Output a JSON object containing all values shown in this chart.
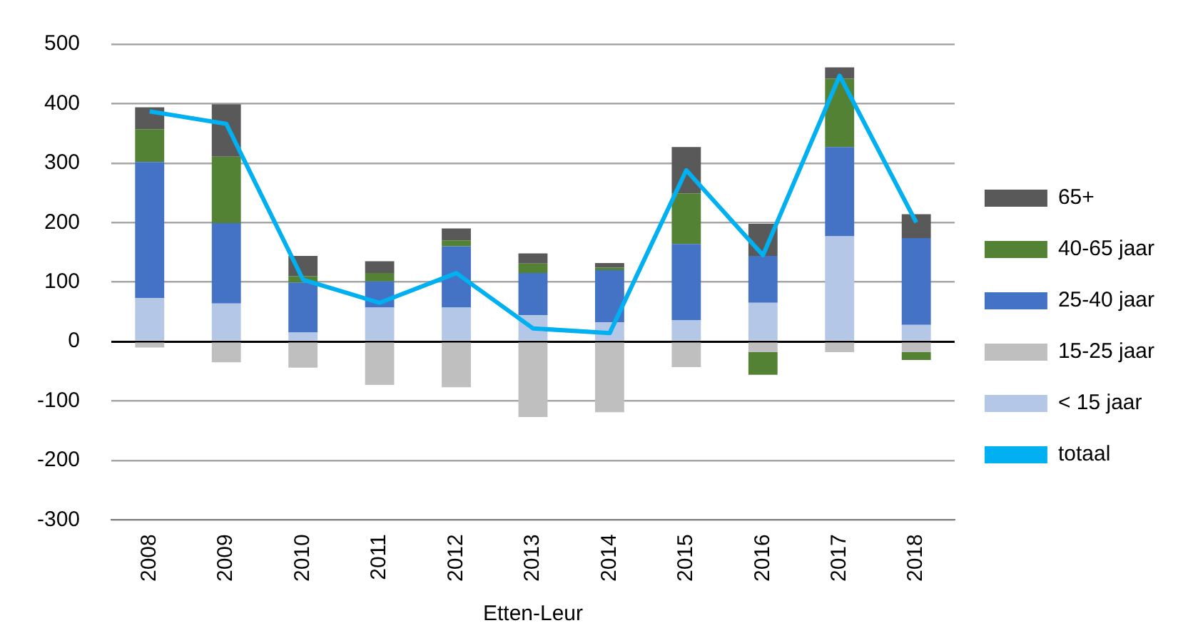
{
  "chart_data": {
    "type": "bar",
    "stacked": true,
    "xlabel": "Etten-Leur",
    "categories": [
      "2008",
      "2009",
      "2010",
      "2011",
      "2012",
      "2013",
      "2014",
      "2015",
      "2016",
      "2017",
      "2018"
    ],
    "series": [
      {
        "name": "< 15 jaar",
        "color": "#b4c7e7",
        "values": [
          73,
          64,
          15,
          57,
          57,
          44,
          32,
          36,
          65,
          177,
          28
        ]
      },
      {
        "name": "15-25 jaar",
        "color": "#bfbfbf",
        "values": [
          -10,
          -35,
          -44,
          -73,
          -77,
          -127,
          -119,
          -43,
          -18,
          -18,
          -18
        ]
      },
      {
        "name": "25-40 jaar",
        "color": "#4472c4",
        "values": [
          229,
          135,
          84,
          44,
          103,
          71,
          88,
          128,
          79,
          150,
          146
        ]
      },
      {
        "name": "40-65 jaar",
        "color": "#548235",
        "values": [
          55,
          112,
          11,
          14,
          10,
          16,
          4,
          85,
          -38,
          115,
          -13
        ]
      },
      {
        "name": "65+",
        "color": "#595959",
        "values": [
          37,
          88,
          34,
          20,
          20,
          17,
          8,
          78,
          54,
          19,
          40
        ]
      },
      {
        "name": "totaal",
        "type": "line",
        "color": "#00b0f0",
        "values": [
          387,
          366,
          104,
          65,
          115,
          22,
          14,
          288,
          145,
          447,
          200
        ]
      }
    ],
    "ylim": [
      -300,
      500
    ],
    "yticks": [
      -300,
      -200,
      -100,
      0,
      100,
      200,
      300,
      400,
      500
    ],
    "grid": "y",
    "legend": "right"
  }
}
